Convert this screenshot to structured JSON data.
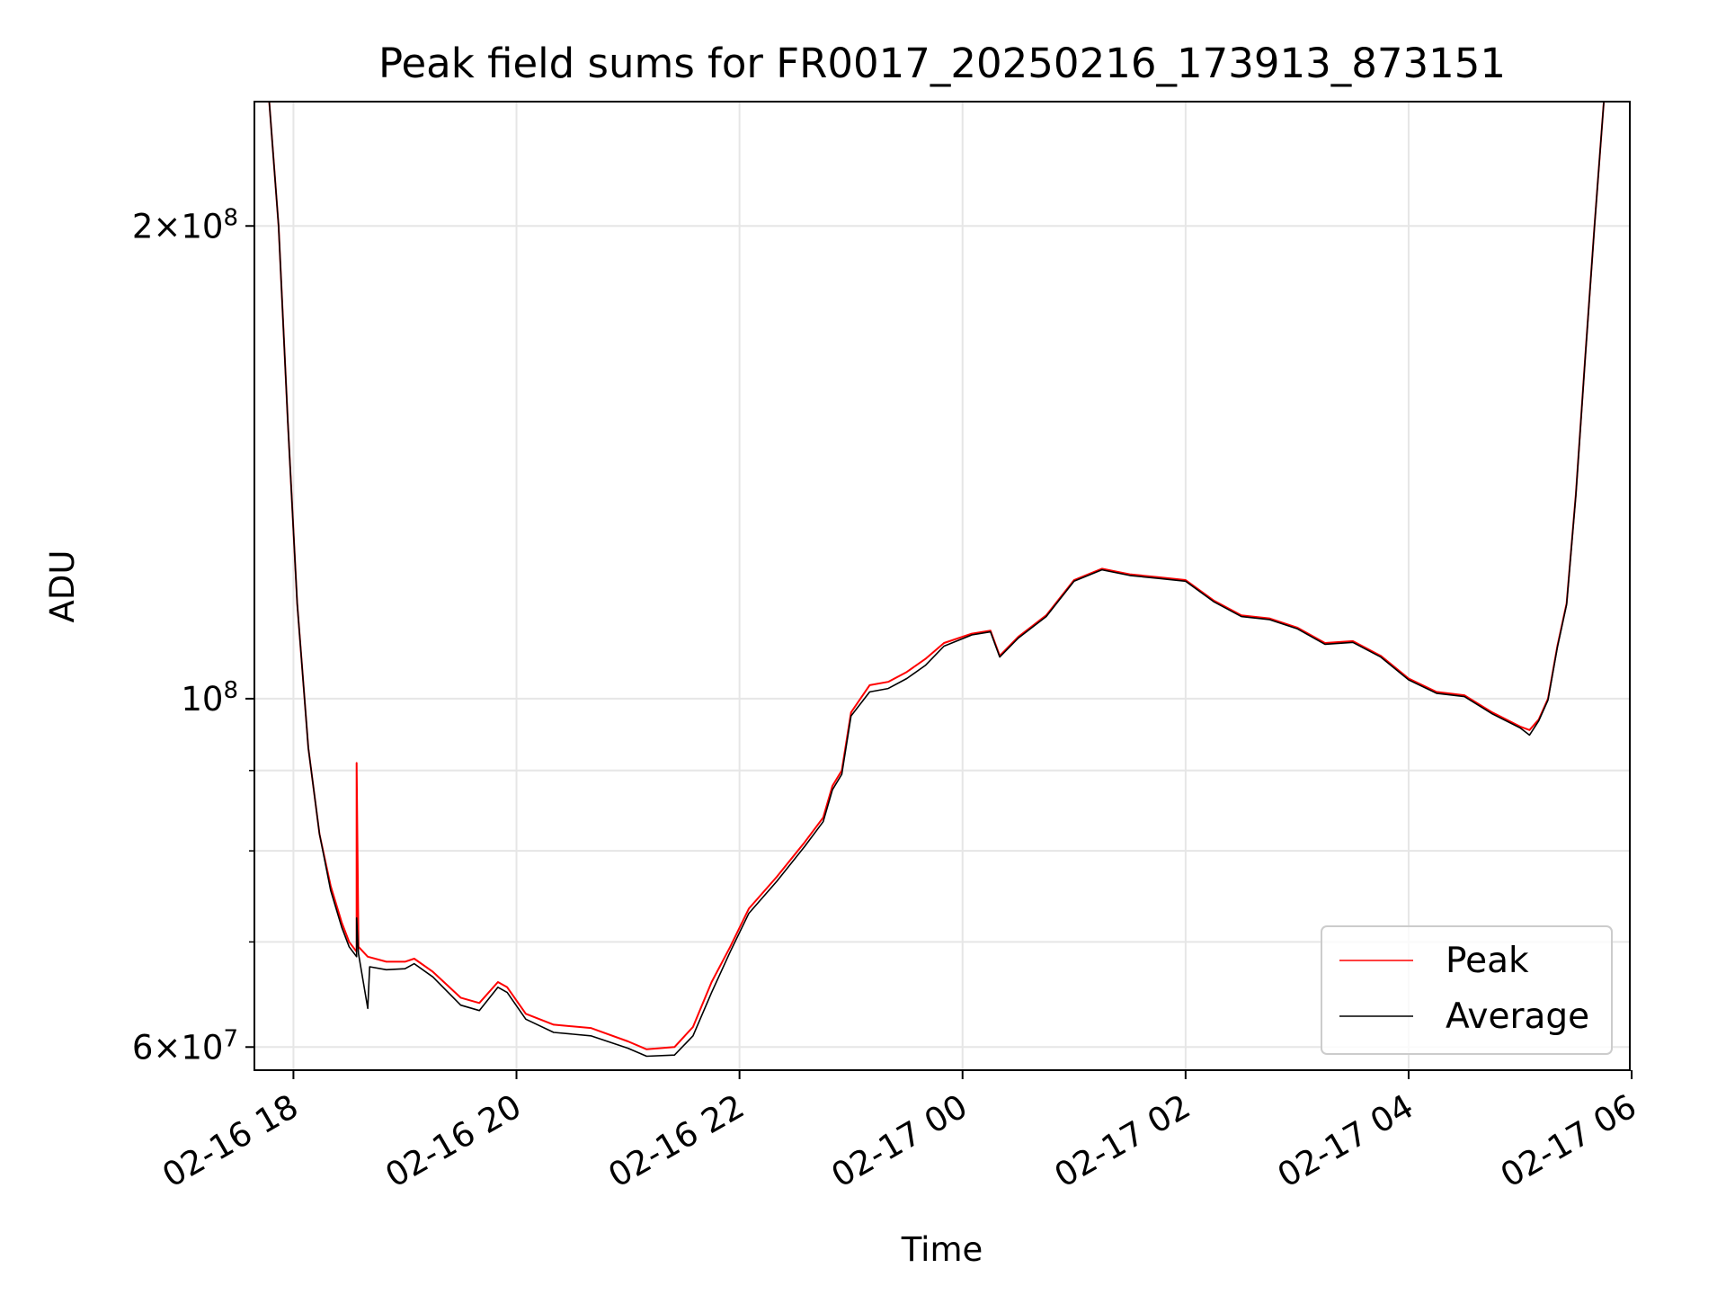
{
  "chart_data": {
    "type": "line",
    "title": "Peak field sums for FR0017_20250216_173913_873151",
    "xlabel": "Time",
    "ylabel": "ADU",
    "x_scale": "time",
    "y_scale": "log",
    "xlim": [
      "2025-02-16T17:39",
      "2025-02-17T05:59"
    ],
    "ylim": [
      58000000,
      240000000
    ],
    "x_ticks": [
      {
        "value": "2025-02-16T18:00",
        "label": "02-16 18"
      },
      {
        "value": "2025-02-16T20:00",
        "label": "02-16 20"
      },
      {
        "value": "2025-02-16T22:00",
        "label": "02-16 22"
      },
      {
        "value": "2025-02-17T00:00",
        "label": "02-17 00"
      },
      {
        "value": "2025-02-17T02:00",
        "label": "02-17 02"
      },
      {
        "value": "2025-02-17T04:00",
        "label": "02-17 04"
      },
      {
        "value": "2025-02-17T06:00",
        "label": "02-17 06"
      }
    ],
    "y_ticks_major": [
      {
        "value": 60000000,
        "mantissa": "6",
        "base": "10",
        "exp": "7"
      },
      {
        "value": 100000000,
        "mantissa": "",
        "base": "10",
        "exp": "8"
      },
      {
        "value": 200000000,
        "mantissa": "2",
        "base": "10",
        "exp": "8"
      }
    ],
    "y_ticks_minor": [
      70000000,
      80000000,
      90000000
    ],
    "grid": true,
    "legend_position": "lower-right",
    "series": [
      {
        "name": "Peak",
        "color": "#ff0000",
        "points": [
          [
            "2025-02-16T17:39",
            240000000
          ],
          [
            "2025-02-16T17:47",
            240000000
          ],
          [
            "2025-02-16T17:52",
            200000000
          ],
          [
            "2025-02-16T17:57",
            150000000
          ],
          [
            "2025-02-16T18:02",
            115000000
          ],
          [
            "2025-02-16T18:08",
            93000000
          ],
          [
            "2025-02-16T18:14",
            82000000
          ],
          [
            "2025-02-16T18:20",
            76000000
          ],
          [
            "2025-02-16T18:26",
            72000000
          ],
          [
            "2025-02-16T18:30",
            70000000
          ],
          [
            "2025-02-16T18:34",
            69000000
          ],
          [
            "2025-02-16T18:34",
            91000000
          ],
          [
            "2025-02-16T18:35",
            69500000
          ],
          [
            "2025-02-16T18:40",
            68500000
          ],
          [
            "2025-02-16T18:50",
            68000000
          ],
          [
            "2025-02-16T19:00",
            68000000
          ],
          [
            "2025-02-16T19:05",
            68300000
          ],
          [
            "2025-02-16T19:15",
            67000000
          ],
          [
            "2025-02-16T19:30",
            64500000
          ],
          [
            "2025-02-16T19:40",
            64000000
          ],
          [
            "2025-02-16T19:50",
            66000000
          ],
          [
            "2025-02-16T19:55",
            65500000
          ],
          [
            "2025-02-16T20:05",
            63000000
          ],
          [
            "2025-02-16T20:20",
            62000000
          ],
          [
            "2025-02-16T20:40",
            61700000
          ],
          [
            "2025-02-16T21:00",
            60500000
          ],
          [
            "2025-02-16T21:10",
            59800000
          ],
          [
            "2025-02-16T21:25",
            60000000
          ],
          [
            "2025-02-16T21:35",
            61800000
          ],
          [
            "2025-02-16T21:45",
            66000000
          ],
          [
            "2025-02-16T21:55",
            69500000
          ],
          [
            "2025-02-16T22:05",
            73500000
          ],
          [
            "2025-02-16T22:20",
            77000000
          ],
          [
            "2025-02-16T22:35",
            81000000
          ],
          [
            "2025-02-16T22:45",
            84000000
          ],
          [
            "2025-02-16T22:50",
            88000000
          ],
          [
            "2025-02-16T22:55",
            90000000
          ],
          [
            "2025-02-16T23:00",
            98000000
          ],
          [
            "2025-02-16T23:10",
            102000000
          ],
          [
            "2025-02-16T23:20",
            102500000
          ],
          [
            "2025-02-16T23:30",
            104000000
          ],
          [
            "2025-02-16T23:40",
            106000000
          ],
          [
            "2025-02-16T23:50",
            108500000
          ],
          [
            "2025-02-17T00:05",
            110000000
          ],
          [
            "2025-02-17T00:15",
            110500000
          ],
          [
            "2025-02-17T00:20",
            106500000
          ],
          [
            "2025-02-17T00:30",
            109500000
          ],
          [
            "2025-02-17T00:45",
            113000000
          ],
          [
            "2025-02-17T01:00",
            119000000
          ],
          [
            "2025-02-17T01:15",
            121000000
          ],
          [
            "2025-02-17T01:30",
            120000000
          ],
          [
            "2025-02-17T01:45",
            119500000
          ],
          [
            "2025-02-17T02:00",
            119000000
          ],
          [
            "2025-02-17T02:15",
            115500000
          ],
          [
            "2025-02-17T02:30",
            113000000
          ],
          [
            "2025-02-17T02:45",
            112500000
          ],
          [
            "2025-02-17T03:00",
            111000000
          ],
          [
            "2025-02-17T03:15",
            108500000
          ],
          [
            "2025-02-17T03:30",
            108800000
          ],
          [
            "2025-02-17T03:45",
            106500000
          ],
          [
            "2025-02-17T04:00",
            103000000
          ],
          [
            "2025-02-17T04:15",
            101000000
          ],
          [
            "2025-02-17T04:30",
            100500000
          ],
          [
            "2025-02-17T04:45",
            98000000
          ],
          [
            "2025-02-17T05:00",
            96000000
          ],
          [
            "2025-02-17T05:05",
            95500000
          ],
          [
            "2025-02-17T05:10",
            97000000
          ],
          [
            "2025-02-17T05:15",
            100000000
          ],
          [
            "2025-02-17T05:20",
            108000000
          ],
          [
            "2025-02-17T05:25",
            115000000
          ],
          [
            "2025-02-17T05:30",
            135000000
          ],
          [
            "2025-02-17T05:35",
            165000000
          ],
          [
            "2025-02-17T05:40",
            200000000
          ],
          [
            "2025-02-17T05:45",
            240000000
          ],
          [
            "2025-02-17T05:59",
            240000000
          ]
        ]
      },
      {
        "name": "Average",
        "color": "#000000",
        "points": [
          [
            "2025-02-16T17:39",
            240000000
          ],
          [
            "2025-02-16T17:47",
            240000000
          ],
          [
            "2025-02-16T17:52",
            200000000
          ],
          [
            "2025-02-16T17:57",
            150000000
          ],
          [
            "2025-02-16T18:02",
            115000000
          ],
          [
            "2025-02-16T18:08",
            93000000
          ],
          [
            "2025-02-16T18:14",
            82000000
          ],
          [
            "2025-02-16T18:20",
            75500000
          ],
          [
            "2025-02-16T18:26",
            71500000
          ],
          [
            "2025-02-16T18:30",
            69500000
          ],
          [
            "2025-02-16T18:34",
            68500000
          ],
          [
            "2025-02-16T18:34",
            72500000
          ],
          [
            "2025-02-16T18:35",
            68800000
          ],
          [
            "2025-02-16T18:40",
            63500000
          ],
          [
            "2025-02-16T18:41",
            67500000
          ],
          [
            "2025-02-16T18:50",
            67200000
          ],
          [
            "2025-02-16T19:00",
            67300000
          ],
          [
            "2025-02-16T19:05",
            67800000
          ],
          [
            "2025-02-16T19:15",
            66500000
          ],
          [
            "2025-02-16T19:30",
            63800000
          ],
          [
            "2025-02-16T19:40",
            63300000
          ],
          [
            "2025-02-16T19:50",
            65500000
          ],
          [
            "2025-02-16T19:55",
            65000000
          ],
          [
            "2025-02-16T20:05",
            62500000
          ],
          [
            "2025-02-16T20:20",
            61300000
          ],
          [
            "2025-02-16T20:40",
            61000000
          ],
          [
            "2025-02-16T21:00",
            59900000
          ],
          [
            "2025-02-16T21:10",
            59200000
          ],
          [
            "2025-02-16T21:25",
            59300000
          ],
          [
            "2025-02-16T21:35",
            61000000
          ],
          [
            "2025-02-16T21:45",
            65000000
          ],
          [
            "2025-02-16T21:55",
            69000000
          ],
          [
            "2025-02-16T22:05",
            73000000
          ],
          [
            "2025-02-16T22:20",
            76500000
          ],
          [
            "2025-02-16T22:35",
            80500000
          ],
          [
            "2025-02-16T22:45",
            83500000
          ],
          [
            "2025-02-16T22:50",
            87500000
          ],
          [
            "2025-02-16T22:55",
            89500000
          ],
          [
            "2025-02-16T23:00",
            97500000
          ],
          [
            "2025-02-16T23:10",
            101000000
          ],
          [
            "2025-02-16T23:20",
            101500000
          ],
          [
            "2025-02-16T23:30",
            103000000
          ],
          [
            "2025-02-16T23:40",
            105000000
          ],
          [
            "2025-02-16T23:50",
            108000000
          ],
          [
            "2025-02-17T00:05",
            109800000
          ],
          [
            "2025-02-17T00:15",
            110300000
          ],
          [
            "2025-02-17T00:20",
            106300000
          ],
          [
            "2025-02-17T00:30",
            109300000
          ],
          [
            "2025-02-17T00:45",
            112800000
          ],
          [
            "2025-02-17T01:00",
            118800000
          ],
          [
            "2025-02-17T01:15",
            120800000
          ],
          [
            "2025-02-17T01:30",
            119800000
          ],
          [
            "2025-02-17T01:45",
            119300000
          ],
          [
            "2025-02-17T02:00",
            118800000
          ],
          [
            "2025-02-17T02:15",
            115300000
          ],
          [
            "2025-02-17T02:30",
            112800000
          ],
          [
            "2025-02-17T02:45",
            112300000
          ],
          [
            "2025-02-17T03:00",
            110800000
          ],
          [
            "2025-02-17T03:15",
            108300000
          ],
          [
            "2025-02-17T03:30",
            108600000
          ],
          [
            "2025-02-17T03:45",
            106300000
          ],
          [
            "2025-02-17T04:00",
            102800000
          ],
          [
            "2025-02-17T04:15",
            100800000
          ],
          [
            "2025-02-17T04:30",
            100300000
          ],
          [
            "2025-02-17T04:45",
            97800000
          ],
          [
            "2025-02-17T05:00",
            95800000
          ],
          [
            "2025-02-17T05:05",
            94800000
          ],
          [
            "2025-02-17T05:10",
            96800000
          ],
          [
            "2025-02-17T05:15",
            99800000
          ],
          [
            "2025-02-17T05:20",
            107800000
          ],
          [
            "2025-02-17T05:25",
            114800000
          ],
          [
            "2025-02-17T05:30",
            134800000
          ],
          [
            "2025-02-17T05:35",
            164800000
          ],
          [
            "2025-02-17T05:40",
            199800000
          ],
          [
            "2025-02-17T05:45",
            240000000
          ],
          [
            "2025-02-17T05:59",
            240000000
          ]
        ]
      }
    ]
  }
}
